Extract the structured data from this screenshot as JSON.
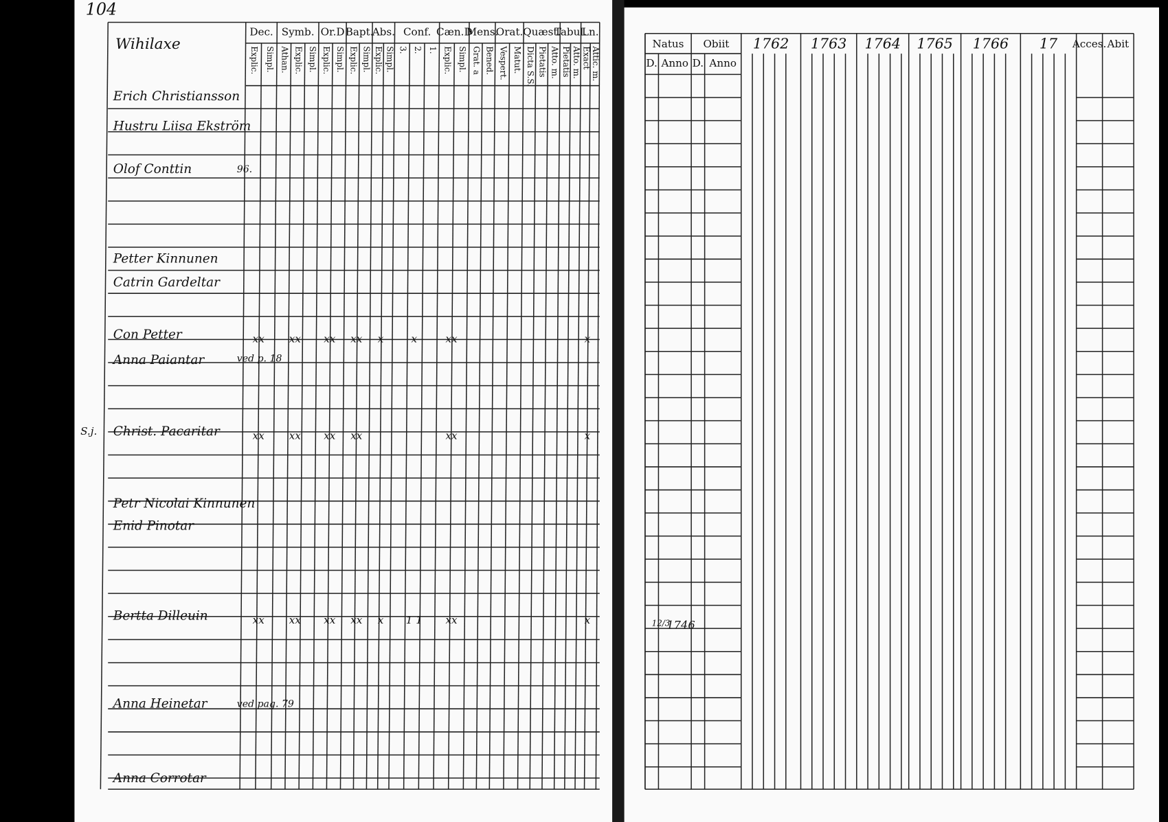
{
  "page_number": "104",
  "left_page": {
    "village": "Wihilaxe",
    "columns": [
      {
        "title": "Dec.",
        "sub": [
          "Explic.",
          "Simpl."
        ]
      },
      {
        "title": "Symb.",
        "sub": [
          "Athan.",
          "Explic.",
          "Simpl."
        ]
      },
      {
        "title": "Or.D",
        "sub": [
          "Explic.",
          "Simpl."
        ]
      },
      {
        "title": "Bapt.",
        "sub": [
          "Explic.",
          "Simpl."
        ]
      },
      {
        "title": "Abs.",
        "sub": [
          "Explic.",
          "Simpl."
        ]
      },
      {
        "title": "Conf.",
        "sub": [
          "3.",
          "2.",
          "1."
        ]
      },
      {
        "title": "Cæn.D",
        "sub": [
          "Explic.",
          "Simpl."
        ]
      },
      {
        "title": "Mens.",
        "sub": [
          "Grat. a",
          "Bened."
        ]
      },
      {
        "title": "Orat.",
        "sub": [
          "Vespert.",
          "Matut."
        ]
      },
      {
        "title": "Quæst.",
        "sub": [
          "Dicta S.S.",
          "Pietatis",
          "Atto. m."
        ]
      },
      {
        "title": "Tabul.",
        "sub": [
          "Pietatis",
          "Atto. m."
        ]
      },
      {
        "title": "Ln.",
        "sub": [
          "Exact",
          "Attic. m."
        ]
      }
    ],
    "entries": [
      {
        "name": "Erich Christiansson"
      },
      {
        "name": "Hustru Liisa Ekström"
      },
      {
        "name": "Olof Conttin",
        "note": "96."
      },
      {
        "name": "Petter Kinnunen"
      },
      {
        "name": "Catrin Gardeltar"
      },
      {
        "name": "Con Petter",
        "marks": [
          "xx",
          "xx",
          "xx",
          "xx",
          "x",
          "x",
          "xx",
          null,
          null,
          null,
          null,
          "x"
        ]
      },
      {
        "name": "Anna Paiantar",
        "note": "ved p. 18"
      },
      {
        "name": "Christ. Pacaritar",
        "side_note": "S.j.",
        "marks": [
          "xx",
          "xx",
          "xx",
          "xx",
          null,
          null,
          "xx",
          null,
          null,
          null,
          null,
          "x"
        ]
      },
      {
        "name": "Petr Nicolai Kinnunen"
      },
      {
        "name": "Enid Pinotar"
      },
      {
        "name": "Bertta Dilleuin",
        "marks": [
          "xx",
          "xx",
          "xx",
          "xx",
          "x",
          "1 1",
          "xx",
          null,
          null,
          null,
          null,
          "x"
        ]
      },
      {
        "name": "Anna Heinetar",
        "note": "ved pag. 79"
      },
      {
        "name": "Anna Corrotar"
      }
    ]
  },
  "right_page": {
    "columns": [
      {
        "title": "Natus",
        "sub": [
          "D.",
          "Anno"
        ]
      },
      {
        "title": "Obiit",
        "sub": [
          "D.",
          "Anno"
        ]
      },
      {
        "title": "1762"
      },
      {
        "title": "1763"
      },
      {
        "title": "1764"
      },
      {
        "title": "1765"
      },
      {
        "title": "1766"
      },
      {
        "title": "17"
      },
      {
        "title": "Acces."
      },
      {
        "title": "Abit"
      }
    ],
    "birth_record": {
      "day": "12/3",
      "year": "1746"
    }
  }
}
